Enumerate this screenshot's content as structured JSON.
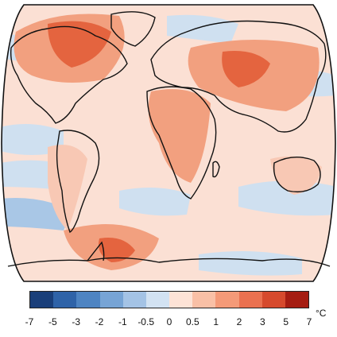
{
  "map": {
    "projection": "robinson-like global map with land outlines",
    "colors": {
      "ocean_base": "#fbe0d4",
      "land_outline": "#111111",
      "neg_light": "#cfe0f0",
      "neg_mid": "#a9c7e6",
      "pos_light": "#f8c8b4",
      "pos_mid": "#f2a07f",
      "pos_strong": "#e4643f"
    }
  },
  "legend": {
    "unit": "°C",
    "labels": [
      "-7",
      "-5",
      "-3",
      "-2",
      "-1",
      "-0.5",
      "0",
      "0.5",
      "1",
      "2",
      "3",
      "5",
      "7"
    ],
    "colors": [
      "#1a3f7a",
      "#2f63a8",
      "#4e84c2",
      "#77a4d5",
      "#a4c3e5",
      "#d2e2f2",
      "#fde3d6",
      "#f9c0a6",
      "#f49a78",
      "#ea7150",
      "#d64a2d",
      "#a51d12"
    ]
  }
}
